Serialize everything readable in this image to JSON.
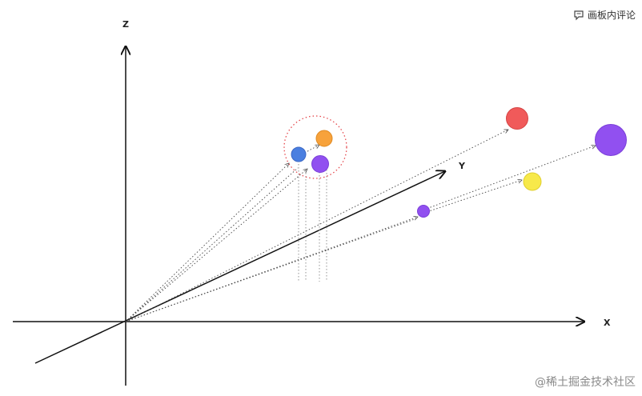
{
  "axes": {
    "x_label": "X",
    "y_label": "Y",
    "z_label": "Z"
  },
  "toolbar": {
    "comment_label": "画板内评论",
    "comment_icon": "comment-icon"
  },
  "watermark": "@稀土掘金技术社区",
  "colors": {
    "axis": "#111111",
    "guide": "#555555",
    "highlight_ring": "#e5484d",
    "blue": "#4a7fe0",
    "orange": "#f7a23b",
    "purple": "#9150f0",
    "red": "#f05a5a",
    "yellow": "#f7e94a"
  }
}
